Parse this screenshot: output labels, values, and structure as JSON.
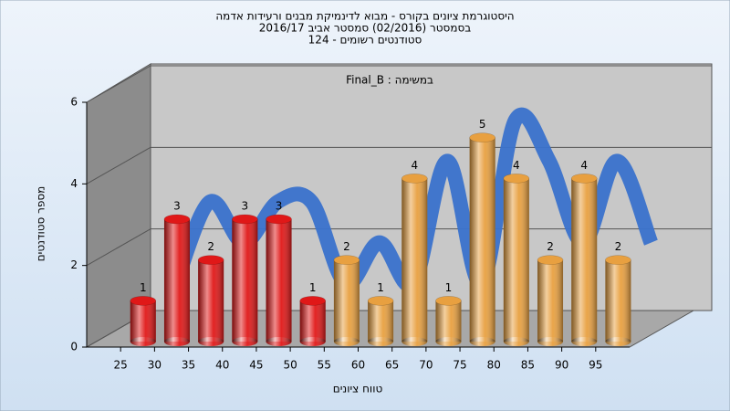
{
  "chart_data": {
    "type": "bar",
    "title": [
      "היסטוגרמת ציונים בקורס - מבוא לדינמיקת מבנים ורעידות אדמה",
      "בסמסטר  (02/2016)  סמסטר אביב 2016/17",
      "סטודנטים רשומים - 124"
    ],
    "annotation": "במשימה : Final_B",
    "y_label": "מספר סטודנטים",
    "x_label": "טווח ציונים",
    "categories": [
      "25",
      "30",
      "35",
      "40",
      "45",
      "50",
      "55",
      "60",
      "65",
      "70",
      "75",
      "80",
      "85",
      "90",
      "95"
    ],
    "values": [
      1,
      3,
      2,
      3,
      3,
      1,
      2,
      1,
      4,
      1,
      5,
      4,
      2,
      4,
      2
    ],
    "colors": [
      "#e01818",
      "#e01818",
      "#e01818",
      "#e01818",
      "#e01818",
      "#e01818",
      "#e8a040",
      "#e8a040",
      "#e8a040",
      "#e8a040",
      "#e8a040",
      "#e8a040",
      "#e8a040",
      "#e8a040",
      "#e8a040"
    ],
    "curve_color": "#3a72cc",
    "ylim": [
      0,
      6
    ],
    "yticks": [
      0,
      2,
      4,
      6
    ],
    "grid": true
  }
}
